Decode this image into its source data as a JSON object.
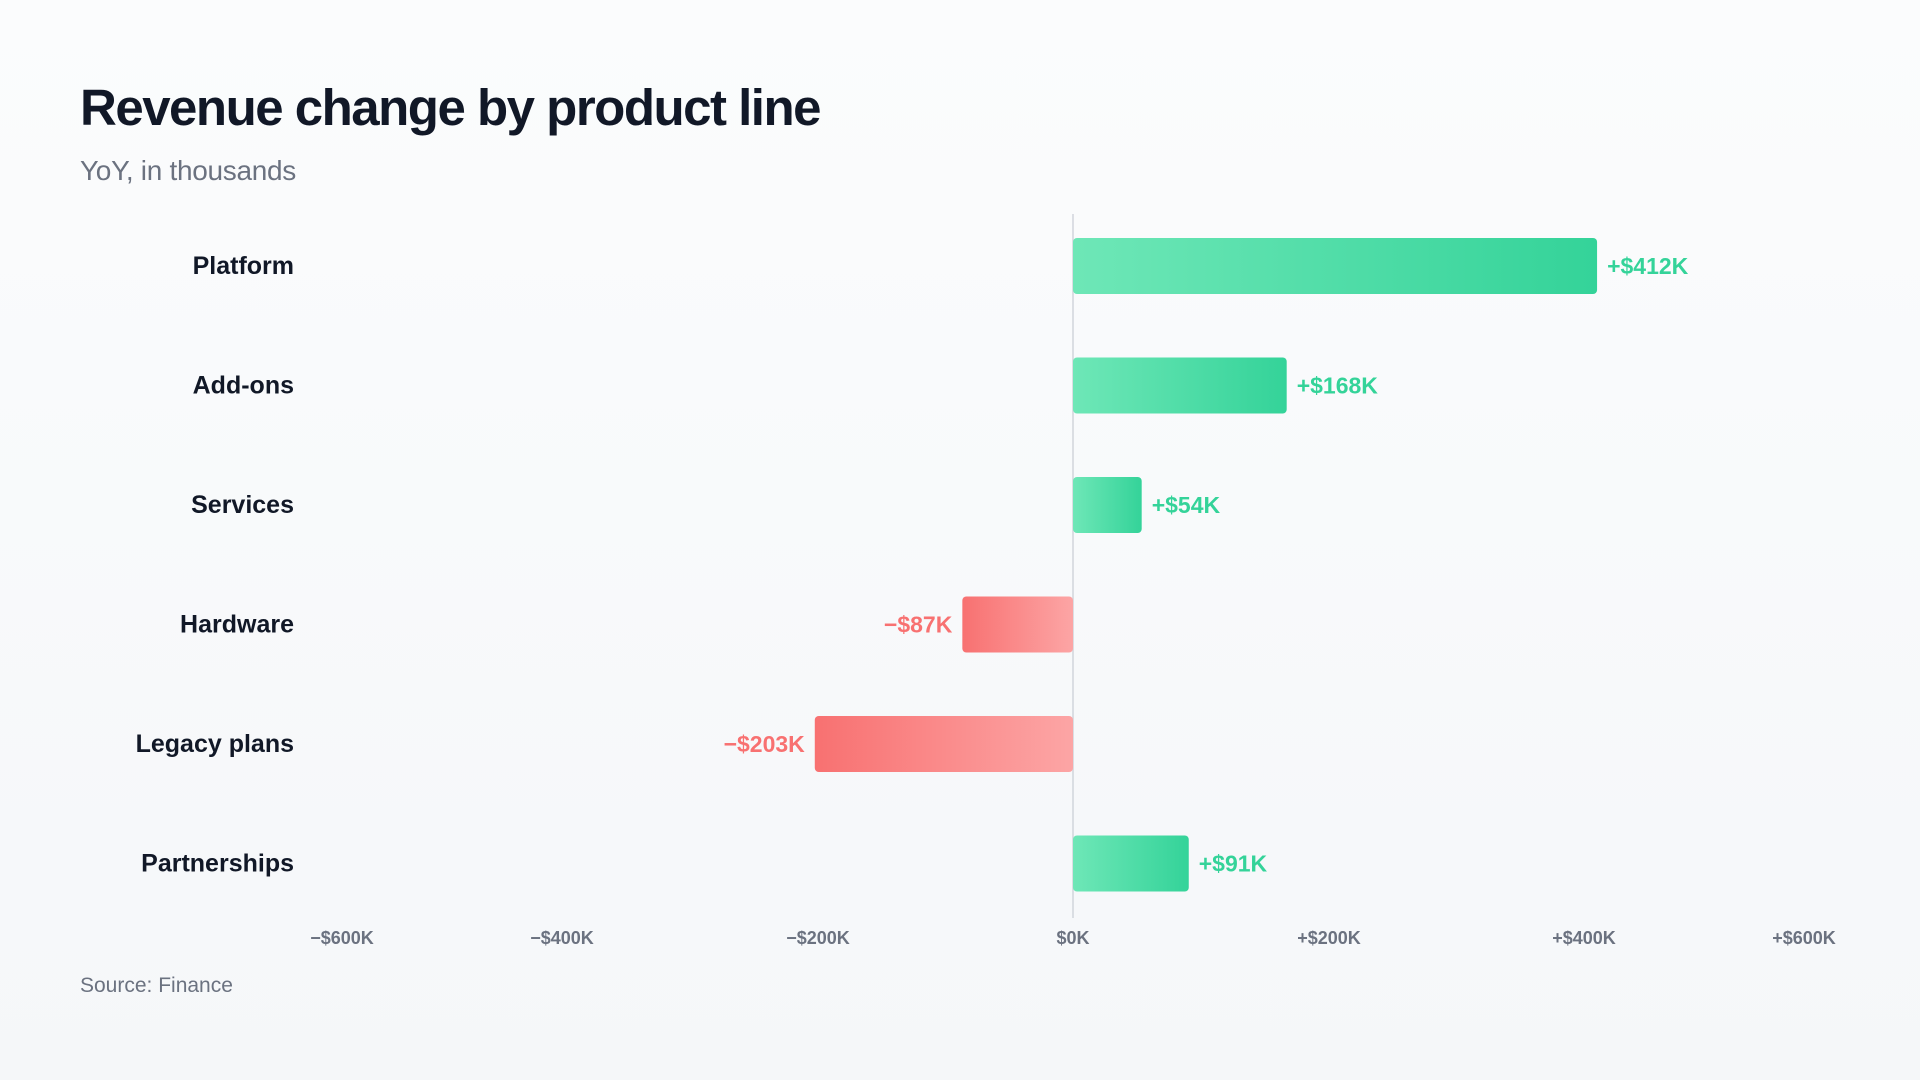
{
  "header": {
    "title": "Revenue change by product line",
    "subtitle": "YoY, in thousands"
  },
  "footer": {
    "source": "Source: Finance"
  },
  "colors": {
    "positive": "#34d399",
    "positive_light": "#6ee7b7",
    "negative": "#f87171",
    "negative_light": "#fca5a5",
    "positive_text": "#34d399",
    "negative_text": "#f87171",
    "zero_line": "#d1d5db"
  },
  "chart_data": {
    "type": "bar",
    "orientation": "horizontal",
    "title": "Revenue change by product line",
    "subtitle": "YoY, in thousands",
    "categories": [
      "Platform",
      "Add-ons",
      "Services",
      "Hardware",
      "Legacy plans",
      "Partnerships"
    ],
    "values": [
      412,
      168,
      54,
      -87,
      -203,
      91
    ],
    "value_labels": [
      "+$412K",
      "+$168K",
      "+$54K",
      "−$87K",
      "−$203K",
      "+$91K"
    ],
    "x_ticks": [
      -600,
      -400,
      -200,
      0,
      200,
      400,
      600
    ],
    "x_tick_labels": [
      "−$600K",
      "−$400K",
      "−$200K",
      "$0K",
      "+$200K",
      "+$400K",
      "+$600K"
    ],
    "xlim": [
      -600,
      600
    ],
    "grid": false,
    "legend": "none"
  }
}
